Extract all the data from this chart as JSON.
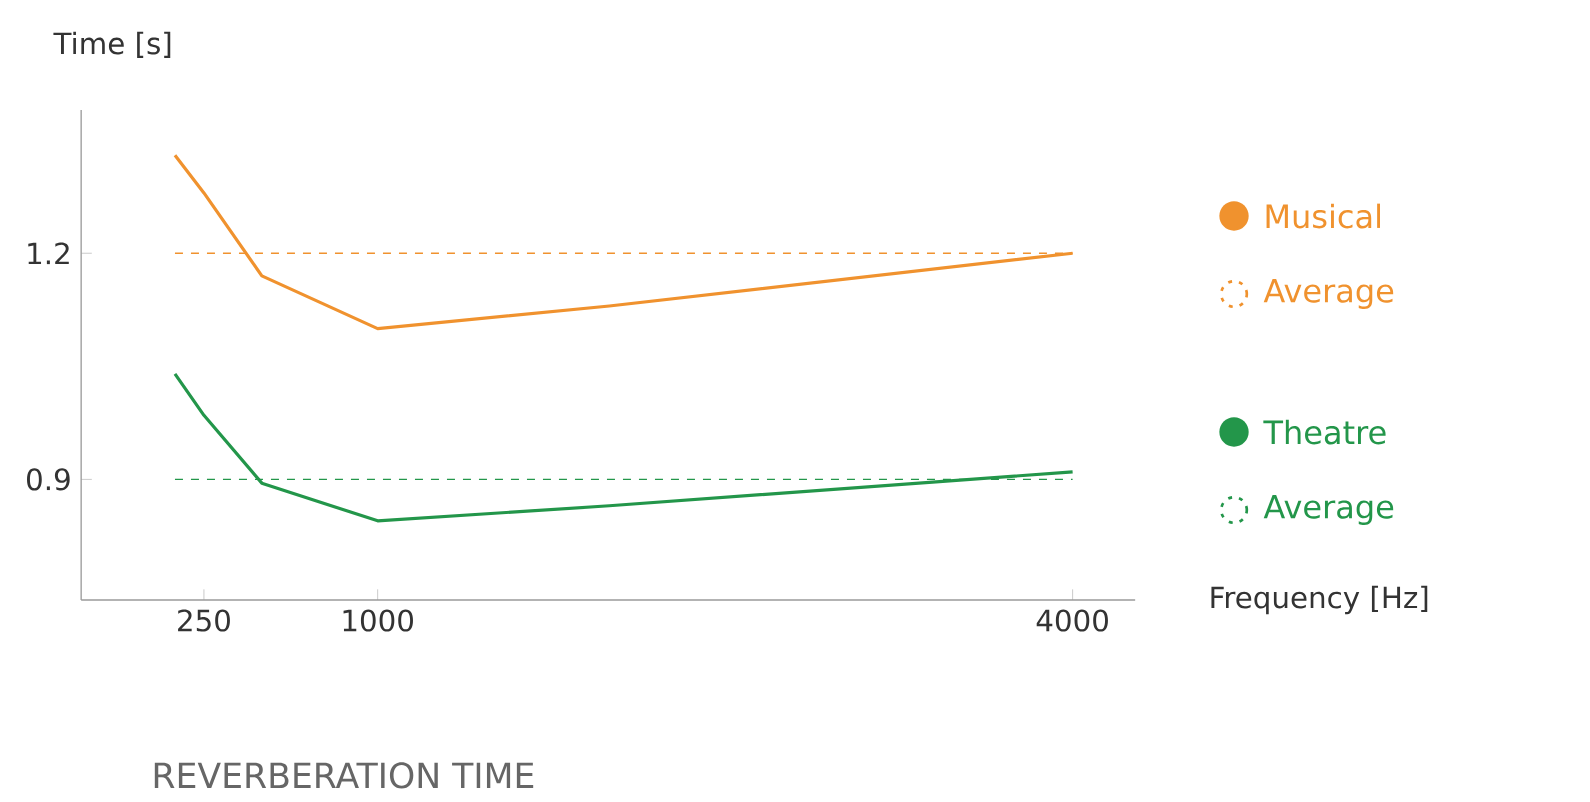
{
  "chart_data": {
    "type": "line",
    "title": "REVERBERATION TIME",
    "xlabel": "Frequency [Hz]",
    "ylabel": "Time [s]",
    "x": [
      125,
      250,
      500,
      1000,
      2000,
      4000
    ],
    "series": [
      {
        "name": "Musical",
        "color": "#f0922e",
        "values": [
          1.33,
          1.28,
          1.17,
          1.1,
          1.13,
          1.2
        ]
      },
      {
        "name": "Theatre",
        "color": "#23964a",
        "values": [
          1.04,
          0.985,
          0.895,
          0.845,
          0.865,
          0.91
        ]
      }
    ],
    "xlim": [
      -280,
      4270
    ],
    "ylim": [
      0.74,
      1.39
    ],
    "xticks": [
      250,
      1000,
      4000
    ],
    "yticks": [
      0.9,
      1.2
    ],
    "ref_lines": [
      {
        "axis": "y",
        "value": 1.2,
        "label": "Average",
        "color": "#f0922e",
        "line_style": "dashed"
      },
      {
        "axis": "y",
        "value": 0.9,
        "label": "Average",
        "color": "#23964a",
        "line_style": "dashed"
      }
    ],
    "legend": "right",
    "marker": "none",
    "line_style": "solid",
    "grid": false
  }
}
